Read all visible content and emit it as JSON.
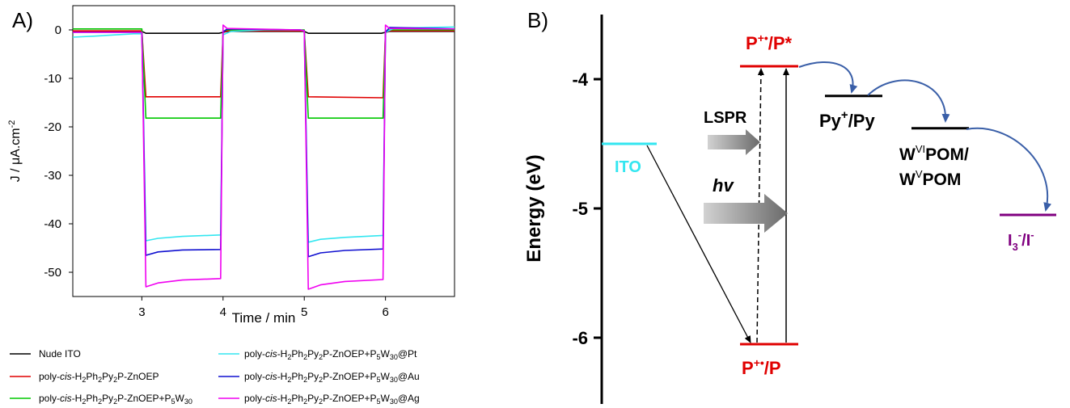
{
  "panels": {
    "a_label": "A)",
    "b_label": "B)"
  },
  "chart_data": [
    {
      "type": "line",
      "title": "",
      "xlabel": "Time / min",
      "ylabel": "J / μA.cm",
      "ylabel_superscript": "-2",
      "xlim": [
        2.15,
        6.85
      ],
      "ylim": [
        -55,
        5
      ],
      "xticks": [
        3,
        4,
        5,
        6
      ],
      "yticks": [
        0,
        -10,
        -20,
        -30,
        -40,
        -50
      ],
      "light_on_intervals": [
        [
          3,
          4
        ],
        [
          5,
          6
        ]
      ],
      "series": [
        {
          "name": "Nude ITO",
          "color": "#000000",
          "x": [
            2.15,
            3.0,
            3.05,
            3.95,
            4.0,
            4.05,
            4.95,
            5.0,
            5.05,
            5.95,
            6.0,
            6.05,
            6.85
          ],
          "y": [
            -0.3,
            -0.3,
            -0.7,
            -0.7,
            -0.5,
            -0.3,
            -0.3,
            -0.3,
            -0.7,
            -0.7,
            -0.5,
            -0.3,
            -0.3
          ]
        },
        {
          "name": "poly-cis-H2Ph2Py2P-ZnOEP",
          "color": "#e00000",
          "x": [
            2.15,
            3.0,
            3.05,
            3.97,
            4.0,
            4.05,
            4.95,
            5.0,
            5.05,
            5.97,
            6.0,
            6.05,
            6.85
          ],
          "y": [
            -0.2,
            -0.2,
            -13.8,
            -13.8,
            -0.5,
            -0.2,
            -0.2,
            -0.2,
            -13.8,
            -14.0,
            -0.5,
            -0.2,
            -0.2
          ]
        },
        {
          "name": "poly-cis-H2Ph2Py2P-ZnOEP+P5W30",
          "color": "#00c800",
          "x": [
            2.15,
            3.0,
            3.05,
            3.97,
            4.0,
            4.05,
            4.95,
            5.0,
            5.05,
            5.97,
            6.0,
            6.05,
            6.85
          ],
          "y": [
            0.2,
            0.2,
            -18.2,
            -18.2,
            -0.3,
            0.0,
            0.0,
            0.0,
            -18.2,
            -18.2,
            -0.3,
            0.0,
            0.0
          ]
        },
        {
          "name": "poly-cis-H2Ph2Py2P-ZnOEP+P5W30@Pt",
          "color": "#33e6f0",
          "x": [
            2.15,
            2.4,
            2.9,
            3.0,
            3.05,
            3.2,
            3.5,
            3.97,
            4.0,
            4.1,
            4.5,
            4.95,
            5.0,
            5.05,
            5.2,
            5.5,
            5.97,
            6.0,
            6.1,
            6.5,
            6.85
          ],
          "y": [
            -1.5,
            -1.3,
            -0.8,
            -0.8,
            -43.5,
            -43.0,
            -42.6,
            -42.3,
            -1.0,
            -0.3,
            0.0,
            0.0,
            -0.2,
            -43.8,
            -43.2,
            -42.8,
            -42.4,
            -0.5,
            0.3,
            0.5,
            0.6
          ]
        },
        {
          "name": "poly-cis-H2Ph2Py2P-ZnOEP+P5W30@Au",
          "color": "#1010d0",
          "x": [
            2.15,
            3.0,
            3.05,
            3.2,
            3.5,
            3.97,
            4.0,
            4.05,
            4.95,
            5.0,
            5.05,
            5.2,
            5.5,
            5.97,
            6.0,
            6.05,
            6.85
          ],
          "y": [
            -0.5,
            -0.5,
            -46.5,
            -45.8,
            -45.4,
            -45.3,
            -0.5,
            0.2,
            0.0,
            -0.2,
            -46.8,
            -46.0,
            -45.5,
            -45.2,
            -0.5,
            0.5,
            0.2
          ]
        },
        {
          "name": "poly-cis-H2Ph2Py2P-ZnOEP+P5W30@Ag",
          "color": "#f000f0",
          "x": [
            2.15,
            3.0,
            3.05,
            3.2,
            3.5,
            3.97,
            4.0,
            4.05,
            4.95,
            5.0,
            5.05,
            5.2,
            5.5,
            5.97,
            6.0,
            6.05,
            6.85
          ],
          "y": [
            -0.5,
            -0.5,
            -53.0,
            -52.2,
            -51.6,
            -51.3,
            1.0,
            0.3,
            0.0,
            -0.2,
            -53.5,
            -52.6,
            -51.9,
            -51.5,
            1.0,
            0.3,
            0.2
          ]
        }
      ],
      "legend": {
        "placement": "bottom",
        "columns": 2
      }
    },
    {
      "type": "diagram",
      "title": "",
      "ylabel": "Energy (eV)",
      "ylim": [
        -6.5,
        -3.5
      ],
      "yticks": [
        -4,
        -5,
        -6
      ],
      "levels": [
        {
          "label": "ITO",
          "energy": -4.5,
          "color": "#33e6f0"
        },
        {
          "label": "P+•/P*",
          "energy": -3.9,
          "color": "#e00000"
        },
        {
          "label": "P+•/P",
          "energy": -6.05,
          "color": "#e00000"
        },
        {
          "label": "Py+/Py",
          "energy": -4.13,
          "color": "#000000"
        },
        {
          "label": "WVIPOM/WVPOM",
          "energy": -4.38,
          "color": "#000000"
        },
        {
          "label": "I3-/I-",
          "energy": -5.05,
          "color": "#800080"
        }
      ],
      "arrow_labels": {
        "lspr": "LSPR",
        "hv": "hv"
      }
    }
  ],
  "legend_text": {
    "nude": "Nude ITO",
    "poly_pre": "poly-",
    "cis": "cis",
    "h2": "-H",
    "ph2": "Ph",
    "py2": "Py",
    "p_zn": "P-ZnOEP",
    "plus_p": "+P",
    "w30": "W",
    "pt": "@Pt",
    "au": "@Au",
    "ag": "@Ag",
    "sub2": "2",
    "sub5": "5",
    "sub30": "30"
  },
  "diagram_text": {
    "p_plus": "P",
    "plus_dot": "+•",
    "p_star": "/P*",
    "p_slash": "/P",
    "py": "Py",
    "plus": "+",
    "py_tail": "/Py",
    "w": "W",
    "vi": "VI",
    "v": "V",
    "pom_slash": "POM/",
    "pom": "POM",
    "i": "I",
    "three": "3",
    "minus": "-",
    "i_tail": "/I"
  }
}
